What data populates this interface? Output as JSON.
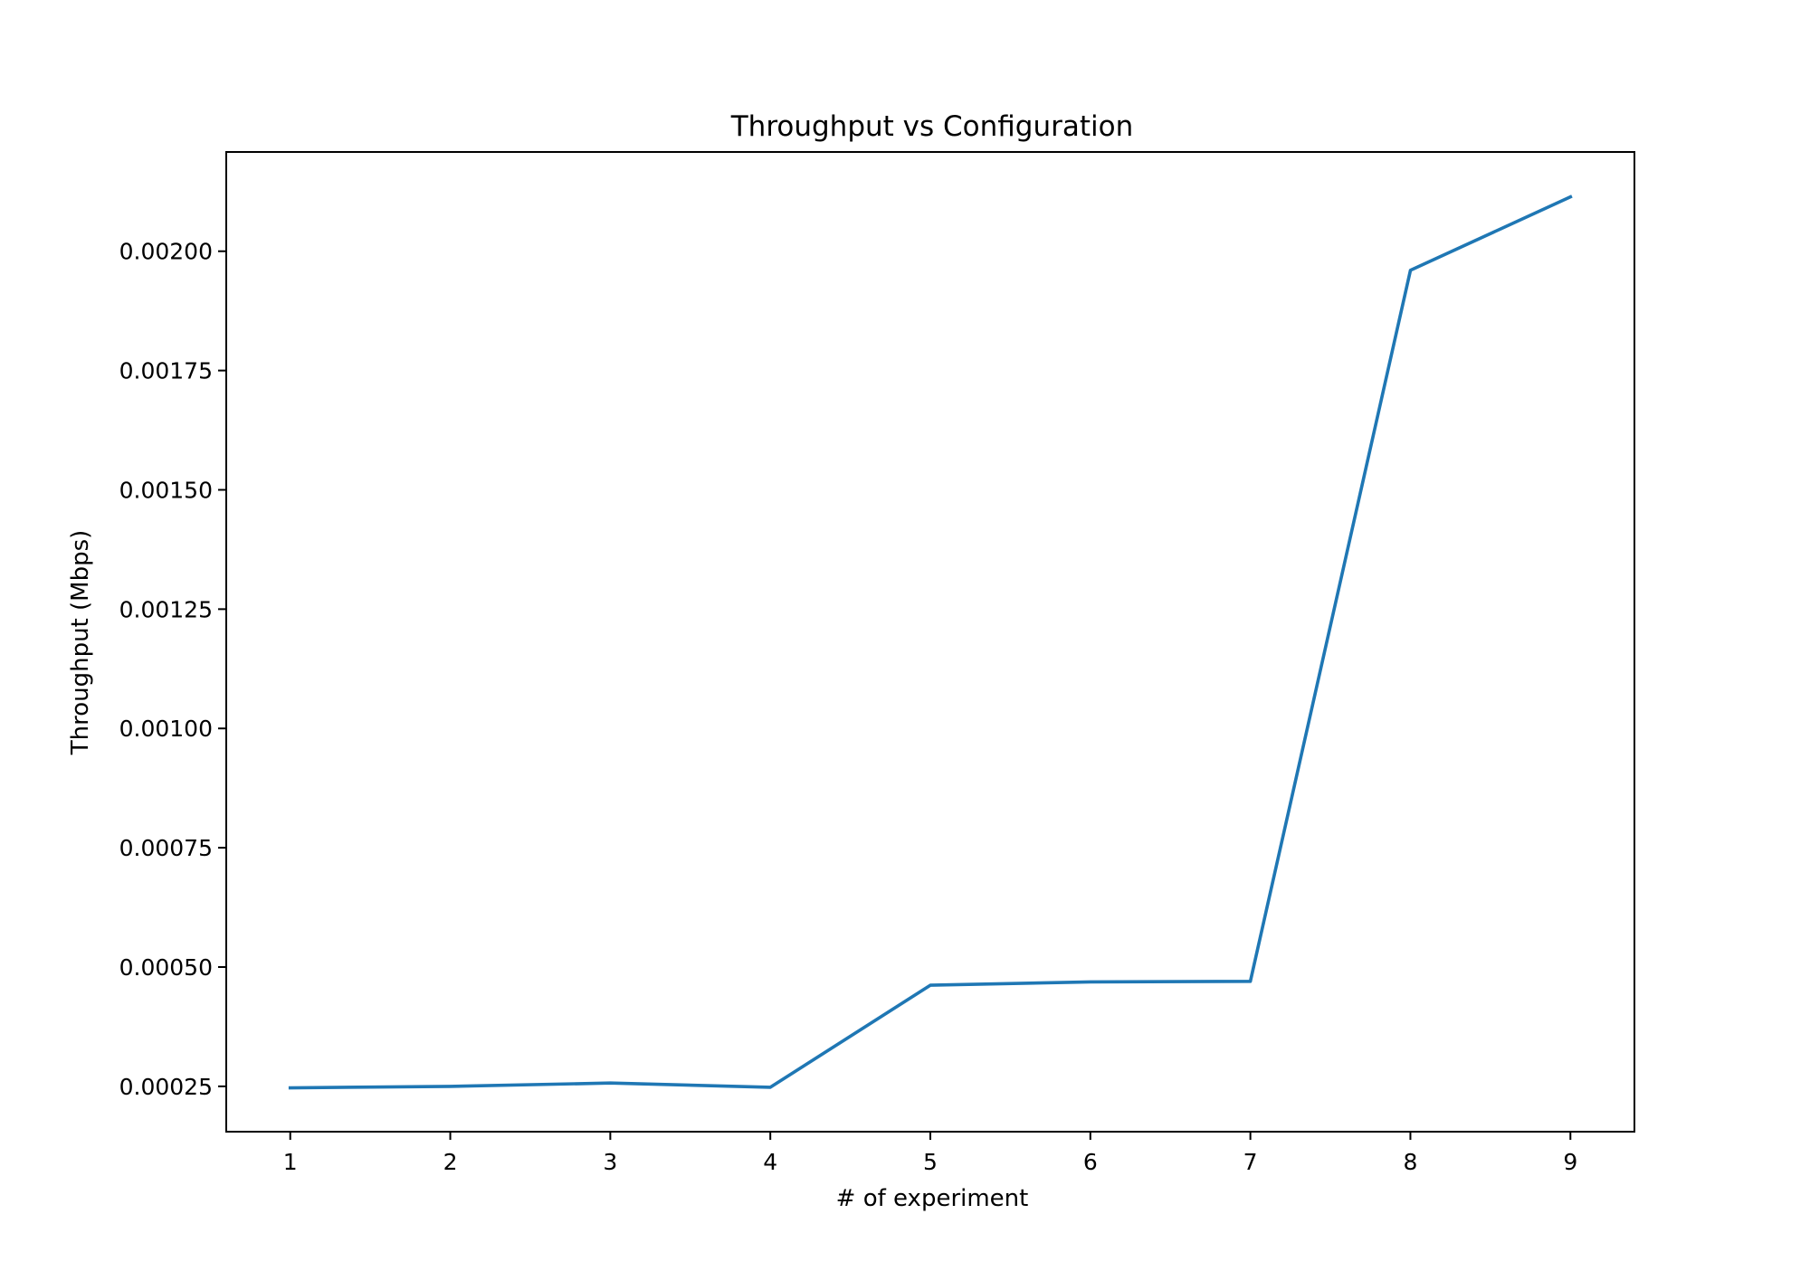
{
  "chart_data": {
    "type": "line",
    "title": "Throughput vs Configuration",
    "xlabel": "# of experiment",
    "ylabel": "Throughput (Mbps)",
    "x": [
      1,
      2,
      3,
      4,
      5,
      6,
      7,
      8,
      9
    ],
    "series": [
      {
        "values": [
          0.000247,
          0.00025,
          0.000257,
          0.000248,
          0.000462,
          0.000469,
          0.00047,
          0.00196,
          0.002114
        ],
        "color": "#1f77b4"
      }
    ],
    "xticks": [
      1,
      2,
      3,
      4,
      5,
      6,
      7,
      8,
      9
    ],
    "xtick_labels": [
      "1",
      "2",
      "3",
      "4",
      "5",
      "6",
      "7",
      "8",
      "9"
    ],
    "yticks": [
      0.00025,
      0.0005,
      0.00075,
      0.001,
      0.00125,
      0.0015,
      0.00175,
      0.002
    ],
    "ytick_labels": [
      "0.00025",
      "0.00050",
      "0.00075",
      "0.00100",
      "0.00125",
      "0.00150",
      "0.00175",
      "0.00200"
    ],
    "xlim": [
      0.6,
      9.4
    ],
    "ylim": [
      0.000155,
      0.002208
    ],
    "grid": false,
    "legend": "none"
  }
}
